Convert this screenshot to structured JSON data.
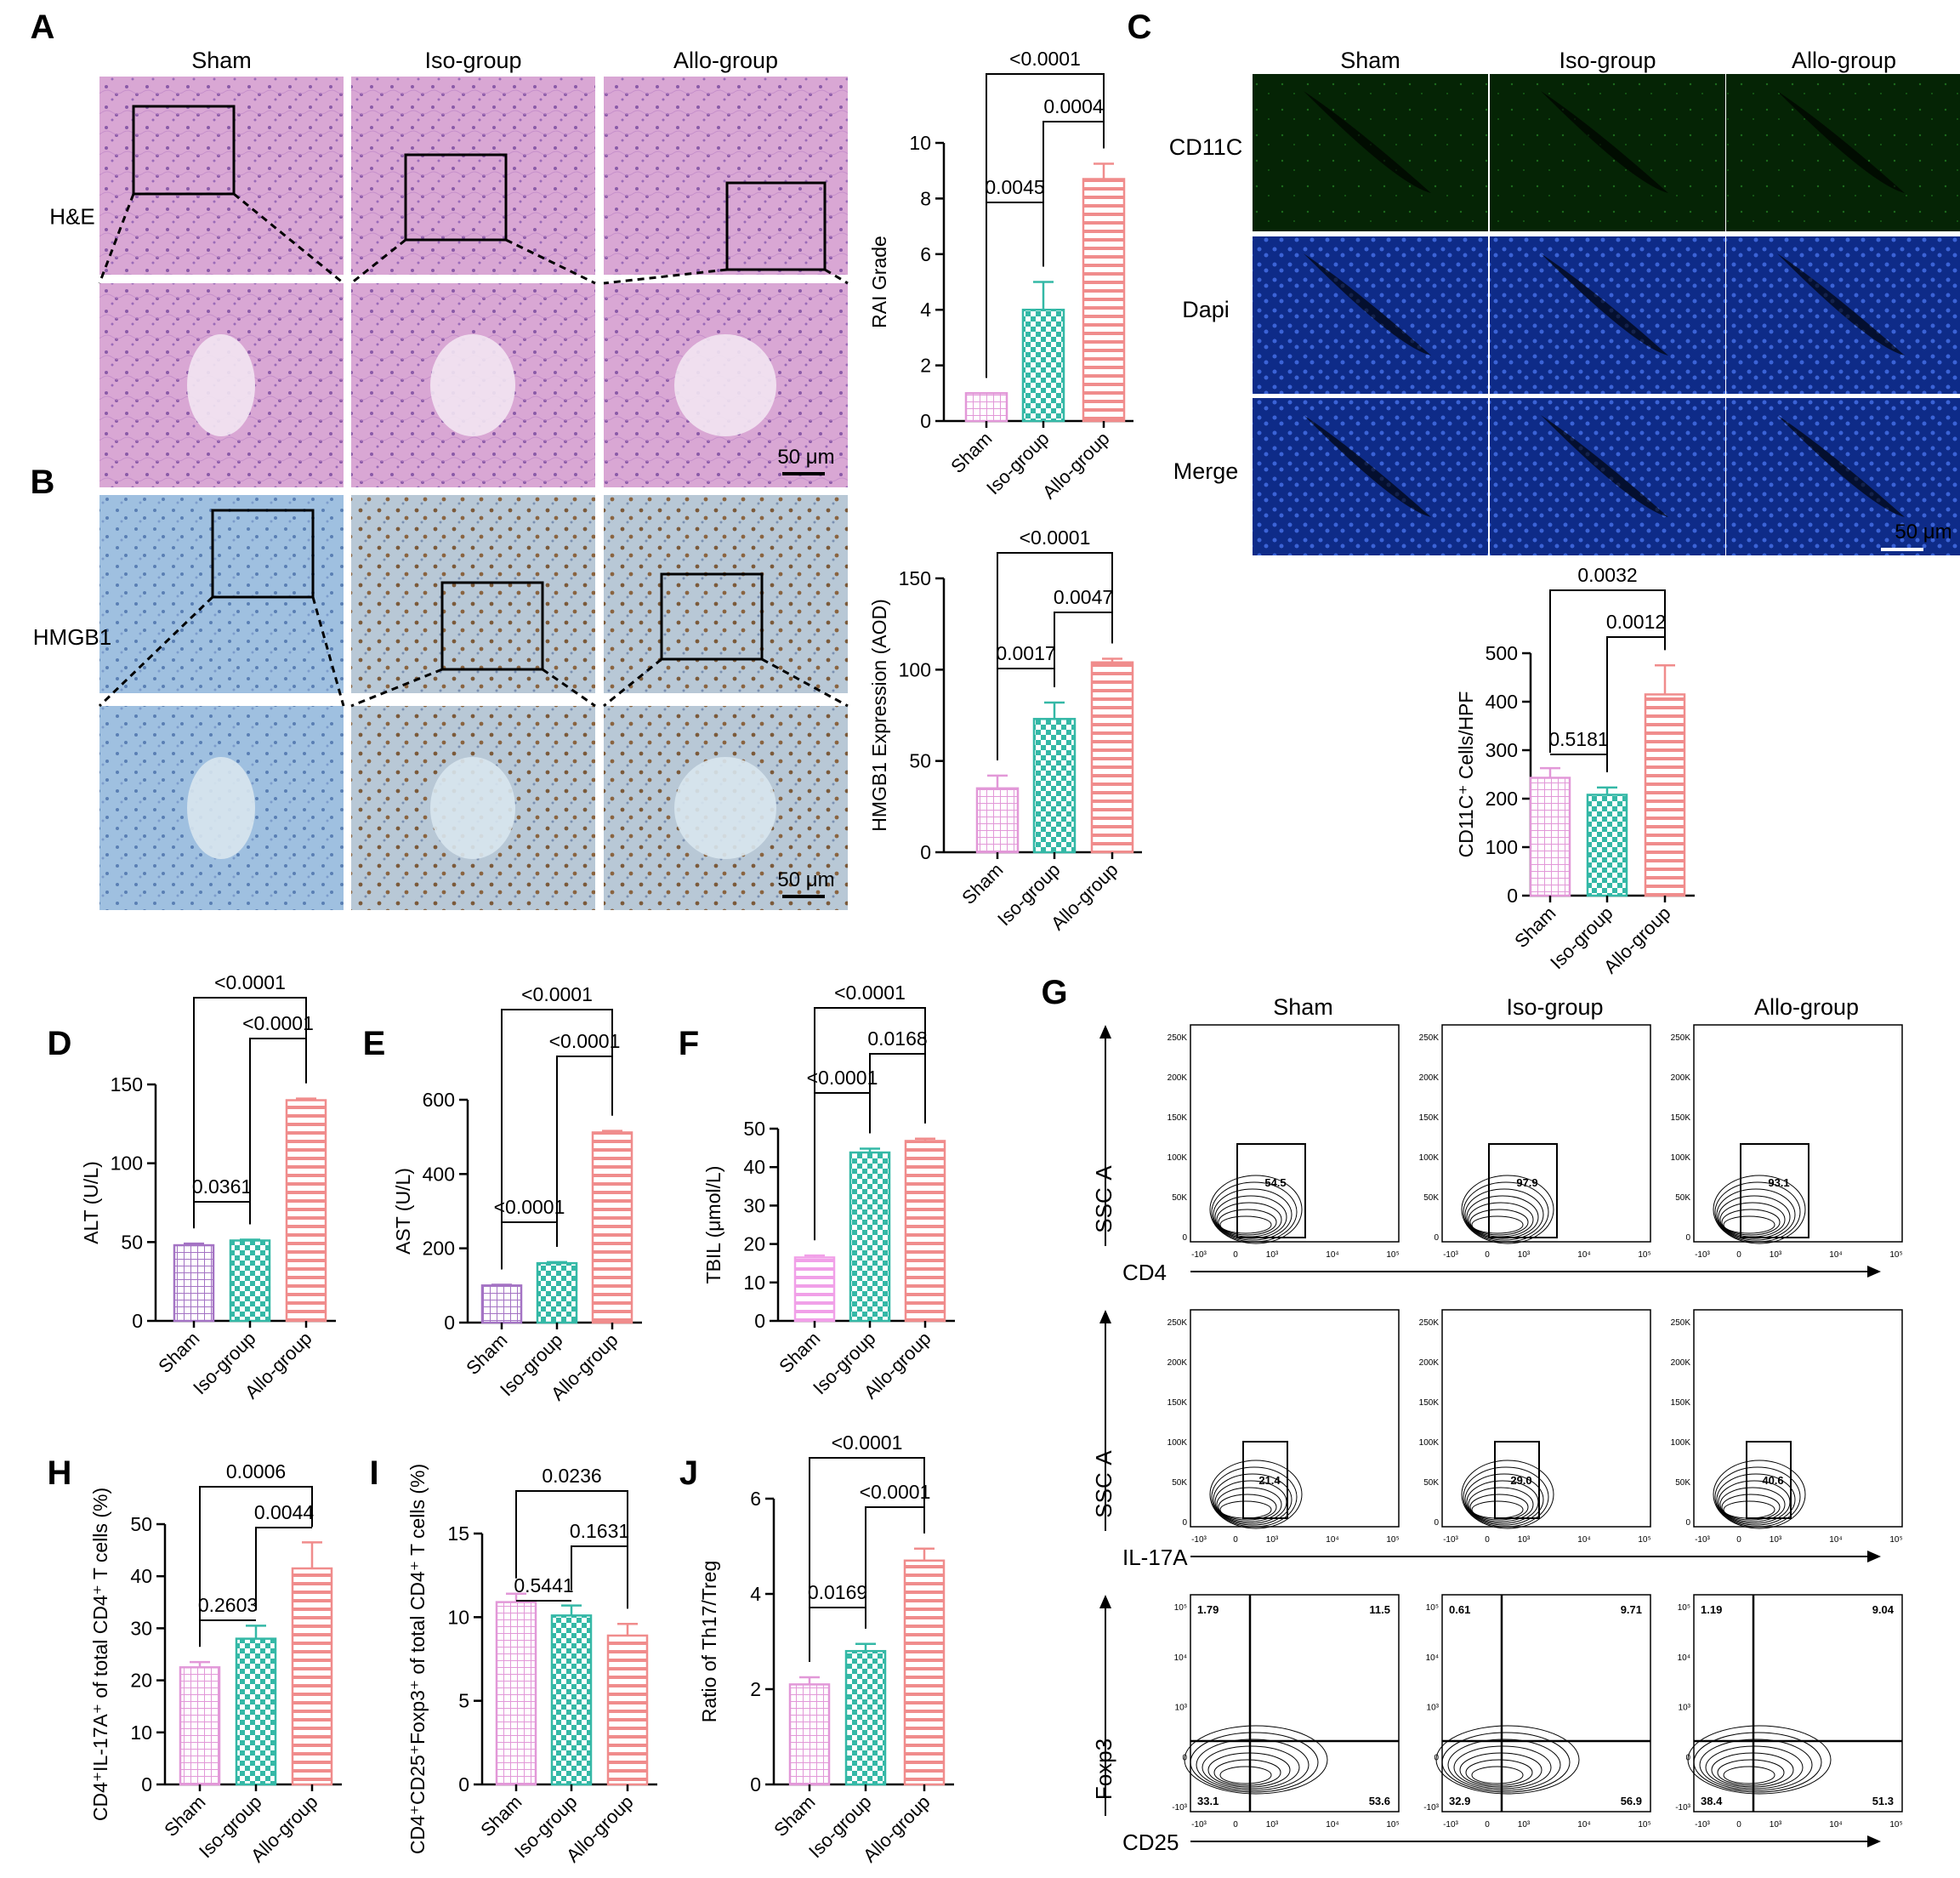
{
  "panels": {
    "A": {
      "label": "A",
      "columns": [
        "Sham",
        "Iso-group",
        "Allo-group"
      ],
      "row_label": "H&E",
      "scale_bar": "50 μm"
    },
    "B": {
      "label": "B",
      "row_label": "HMGB1",
      "scale_bar": "50 μm"
    },
    "C": {
      "label": "C",
      "columns": [
        "Sham",
        "Iso-group",
        "Allo-group"
      ],
      "rows": [
        "CD11C",
        "Dapi",
        "Merge"
      ],
      "scale_bar": "50 μm",
      "colors": {
        "CD11C": "#1a9a2a",
        "Dapi": "#2020a0",
        "Merge": "#000000"
      }
    },
    "D": {
      "label": "D"
    },
    "E": {
      "label": "E"
    },
    "F": {
      "label": "F"
    },
    "G": {
      "label": "G",
      "columns": [
        "Sham",
        "Iso-group",
        "Allo-group"
      ],
      "rows": [
        {
          "y_label": "SSC-A",
          "x_label": "CD4",
          "gate_values": [
            "54.5",
            "97.9",
            "93.1"
          ]
        },
        {
          "y_label": "SSC-A",
          "x_label": "IL-17A",
          "gate_values": [
            "21.4",
            "29.0",
            "40.6"
          ]
        },
        {
          "y_label": "Foxp3",
          "x_label": "CD25",
          "quadrants": [
            {
              "ul": "1.79",
              "ur": "11.5",
              "ll": "33.1",
              "lr": "53.6"
            },
            {
              "ul": "0.61",
              "ur": "9.71",
              "ll": "32.9",
              "lr": "56.9"
            },
            {
              "ul": "1.19",
              "ur": "9.04",
              "ll": "38.4",
              "lr": "51.3"
            }
          ]
        }
      ],
      "y_ticks": [
        "250K",
        "200K",
        "150K",
        "100K",
        "50K",
        "0"
      ],
      "x_ticks": [
        "-10³",
        "0",
        "10³",
        "10⁴",
        "10⁵"
      ],
      "foxp3_ticks": [
        "10⁵",
        "10⁴",
        "10³",
        "0",
        "-10³"
      ]
    },
    "H": {
      "label": "H"
    },
    "I": {
      "label": "I"
    },
    "J": {
      "label": "J"
    }
  },
  "colors": {
    "sham_pink": "#e298d8",
    "sham_purple": "#a473c4",
    "iso_teal": "#34b8a6",
    "allo_red": "#f08c8c"
  },
  "chart_data": [
    {
      "id": "A",
      "type": "bar",
      "categories": [
        "Sham",
        "Iso-group",
        "Allo-group"
      ],
      "values": [
        1,
        4,
        8.7
      ],
      "errors": [
        0,
        1,
        0.55
      ],
      "ylabel": "RAI Grade",
      "ylim": [
        0,
        10
      ],
      "yticks": [
        0,
        2,
        4,
        6,
        8,
        10
      ],
      "comparisons": [
        {
          "a": 0,
          "b": 1,
          "label": "0.0045"
        },
        {
          "a": 1,
          "b": 2,
          "label": "0.0004"
        },
        {
          "a": 0,
          "b": 2,
          "label": "<0.0001"
        }
      ]
    },
    {
      "id": "B",
      "type": "bar",
      "categories": [
        "Sham",
        "Iso-group",
        "Allo-group"
      ],
      "values": [
        35,
        73,
        104
      ],
      "errors": [
        7,
        9,
        2
      ],
      "ylabel": "HMGB1 Expression (AOD)",
      "ylim": [
        0,
        150
      ],
      "yticks": [
        0,
        50,
        100,
        150
      ],
      "comparisons": [
        {
          "a": 0,
          "b": 1,
          "label": "0.0017"
        },
        {
          "a": 1,
          "b": 2,
          "label": "0.0047"
        },
        {
          "a": 0,
          "b": 2,
          "label": "<0.0001"
        }
      ]
    },
    {
      "id": "C",
      "type": "bar",
      "categories": [
        "Sham",
        "Iso-group",
        "Allo-group"
      ],
      "values": [
        243,
        208,
        415
      ],
      "errors": [
        20,
        15,
        60
      ],
      "ylabel": "CD11C⁺ Cells/HPF",
      "ylim": [
        0,
        500
      ],
      "yticks": [
        0,
        100,
        200,
        300,
        400,
        500
      ],
      "comparisons": [
        {
          "a": 0,
          "b": 1,
          "label": "0.5181"
        },
        {
          "a": 1,
          "b": 2,
          "label": "0.0012"
        },
        {
          "a": 0,
          "b": 2,
          "label": "0.0032"
        }
      ]
    },
    {
      "id": "D",
      "type": "bar",
      "categories": [
        "Sham",
        "Iso-group",
        "Allo-group"
      ],
      "values": [
        48,
        51,
        140
      ],
      "errors": [
        1,
        0.5,
        1
      ],
      "ylabel": "ALT (U/L)",
      "ylim": [
        0,
        150
      ],
      "yticks": [
        0,
        50,
        100,
        150
      ],
      "comparisons": [
        {
          "a": 0,
          "b": 1,
          "label": "0.0361"
        },
        {
          "a": 1,
          "b": 2,
          "label": "<0.0001"
        },
        {
          "a": 0,
          "b": 2,
          "label": "<0.0001"
        }
      ]
    },
    {
      "id": "E",
      "type": "bar",
      "categories": [
        "Sham",
        "Iso-group",
        "Allo-group"
      ],
      "values": [
        100,
        160,
        512
      ],
      "errors": [
        2,
        3,
        4
      ],
      "ylabel": "AST (U/L)",
      "ylim": [
        0,
        600
      ],
      "yticks": [
        0,
        200,
        400,
        600
      ],
      "comparisons": [
        {
          "a": 0,
          "b": 1,
          "label": "<0.0001"
        },
        {
          "a": 1,
          "b": 2,
          "label": "<0.0001"
        },
        {
          "a": 0,
          "b": 2,
          "label": "<0.0001"
        }
      ]
    },
    {
      "id": "F",
      "type": "bar",
      "categories": [
        "Sham",
        "Iso-group",
        "Allo-group"
      ],
      "values": [
        16.5,
        43.8,
        46.8
      ],
      "errors": [
        0.5,
        1,
        0.6
      ],
      "ylabel": "TBIL (μmol/L)",
      "ylim": [
        0,
        50
      ],
      "yticks": [
        0,
        10,
        20,
        30,
        40,
        50
      ],
      "comparisons": [
        {
          "a": 0,
          "b": 1,
          "label": "<0.0001"
        },
        {
          "a": 1,
          "b": 2,
          "label": "0.0168"
        },
        {
          "a": 0,
          "b": 2,
          "label": "<0.0001"
        }
      ]
    },
    {
      "id": "H",
      "type": "bar",
      "categories": [
        "Sham",
        "Iso-group",
        "Allo-group"
      ],
      "values": [
        22.5,
        28,
        41.5
      ],
      "errors": [
        1,
        2.5,
        5
      ],
      "ylabel": "CD4⁺IL-17A⁺ of total CD4⁺ T cells (%)",
      "ylim": [
        0,
        50
      ],
      "yticks": [
        0,
        10,
        20,
        30,
        40,
        50
      ],
      "comparisons": [
        {
          "a": 0,
          "b": 1,
          "label": "0.2603"
        },
        {
          "a": 1,
          "b": 2,
          "label": "0.0044"
        },
        {
          "a": 0,
          "b": 2,
          "label": "0.0006"
        }
      ]
    },
    {
      "id": "I",
      "type": "bar",
      "categories": [
        "Sham",
        "Iso-group",
        "Allo-group"
      ],
      "values": [
        10.9,
        10.1,
        8.9
      ],
      "errors": [
        0.5,
        0.6,
        0.7
      ],
      "ylabel": "CD4⁺CD25⁺Foxp3⁺ of total CD4⁺ T cells (%)",
      "ylim": [
        0,
        15
      ],
      "yticks": [
        0,
        5,
        10,
        15
      ],
      "comparisons": [
        {
          "a": 0,
          "b": 1,
          "label": "0.5441"
        },
        {
          "a": 1,
          "b": 2,
          "label": "0.1631"
        },
        {
          "a": 0,
          "b": 2,
          "label": "0.0236"
        }
      ]
    },
    {
      "id": "J",
      "type": "bar",
      "categories": [
        "Sham",
        "Iso-group",
        "Allo-group"
      ],
      "values": [
        2.1,
        2.8,
        4.7
      ],
      "errors": [
        0.15,
        0.15,
        0.25
      ],
      "ylabel": "Ratio of Th17/Treg",
      "ylim": [
        0,
        6
      ],
      "yticks": [
        0,
        2,
        4,
        6
      ],
      "comparisons": [
        {
          "a": 0,
          "b": 1,
          "label": "0.0169"
        },
        {
          "a": 1,
          "b": 2,
          "label": "<0.0001"
        },
        {
          "a": 0,
          "b": 2,
          "label": "<0.0001"
        }
      ]
    }
  ]
}
